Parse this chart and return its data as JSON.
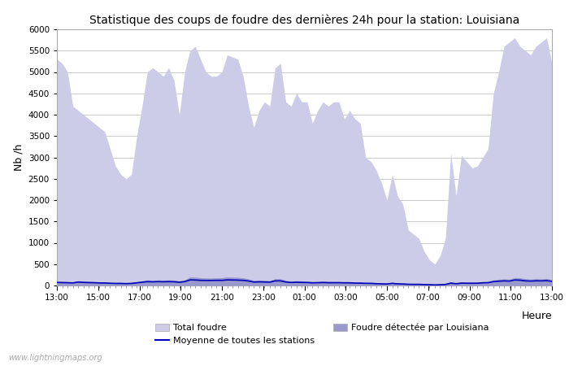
{
  "title": "Statistique des coups de foudre des dernières 24h pour la station: Louisiana",
  "xlabel": "Heure",
  "ylabel": "Nb /h",
  "ylim": [
    0,
    6000
  ],
  "yticks": [
    0,
    500,
    1000,
    1500,
    2000,
    2500,
    3000,
    3500,
    4000,
    4500,
    5000,
    5500,
    6000
  ],
  "x_labels": [
    "13:00",
    "15:00",
    "17:00",
    "19:00",
    "21:00",
    "23:00",
    "01:00",
    "03:00",
    "05:00",
    "07:00",
    "09:00",
    "11:00",
    "13:00"
  ],
  "total_foudre_color": "#cccce8",
  "louisiana_color": "#9999cc",
  "moyenne_color": "#0000bb",
  "background_color": "#ffffff",
  "grid_color": "#cccccc",
  "watermark": "www.lightningmaps.org",
  "total_foudre": [
    5300,
    5200,
    5000,
    4200,
    4100,
    4000,
    3900,
    3800,
    3700,
    3600,
    3200,
    2800,
    2600,
    2500,
    2600,
    3500,
    4200,
    5000,
    5100,
    5000,
    4900,
    5100,
    4800,
    4000,
    5000,
    5500,
    5600,
    5300,
    5000,
    4900,
    4900,
    5000,
    5400,
    5350,
    5300,
    4900,
    4200,
    3700,
    4100,
    4300,
    4200,
    5100,
    5200,
    4300,
    4200,
    4500,
    4300,
    4300,
    3800,
    4100,
    4300,
    4200,
    4300,
    4300,
    3900,
    4100,
    3900,
    3800,
    3000,
    2900,
    2700,
    2400,
    2000,
    2600,
    2100,
    1900,
    1300,
    1200,
    1100,
    800,
    600,
    500,
    700,
    1100,
    3100,
    2100,
    3050,
    2900,
    2750,
    2800,
    3000,
    3200,
    4500,
    5000,
    5600,
    5700,
    5800,
    5600,
    5500,
    5400,
    5600,
    5700,
    5800,
    5200
  ],
  "louisiana": [
    100,
    95,
    90,
    85,
    110,
    100,
    95,
    90,
    85,
    80,
    75,
    70,
    70,
    65,
    70,
    90,
    110,
    130,
    120,
    130,
    125,
    130,
    125,
    110,
    130,
    200,
    195,
    180,
    175,
    175,
    180,
    180,
    200,
    195,
    190,
    180,
    155,
    120,
    125,
    120,
    115,
    160,
    160,
    120,
    100,
    110,
    105,
    100,
    90,
    95,
    100,
    95,
    95,
    95,
    90,
    90,
    80,
    80,
    70,
    70,
    60,
    55,
    50,
    70,
    55,
    50,
    40,
    38,
    38,
    30,
    25,
    20,
    25,
    35,
    80,
    60,
    80,
    78,
    75,
    78,
    90,
    95,
    130,
    145,
    155,
    148,
    185,
    180,
    158,
    150,
    160,
    155,
    165,
    140
  ],
  "moyenne": [
    70,
    68,
    65,
    60,
    80,
    72,
    68,
    65,
    60,
    58,
    52,
    48,
    48,
    44,
    48,
    62,
    76,
    90,
    85,
    90,
    87,
    90,
    87,
    76,
    90,
    130,
    128,
    120,
    118,
    118,
    120,
    120,
    130,
    128,
    125,
    120,
    105,
    80,
    85,
    82,
    78,
    108,
    108,
    82,
    70,
    76,
    72,
    70,
    62,
    65,
    70,
    65,
    65,
    65,
    62,
    62,
    55,
    55,
    50,
    50,
    42,
    38,
    35,
    50,
    38,
    35,
    28,
    26,
    26,
    22,
    18,
    14,
    18,
    24,
    55,
    42,
    55,
    53,
    52,
    53,
    62,
    65,
    90,
    100,
    108,
    102,
    128,
    124,
    108,
    103,
    110,
    107,
    114,
    96
  ]
}
